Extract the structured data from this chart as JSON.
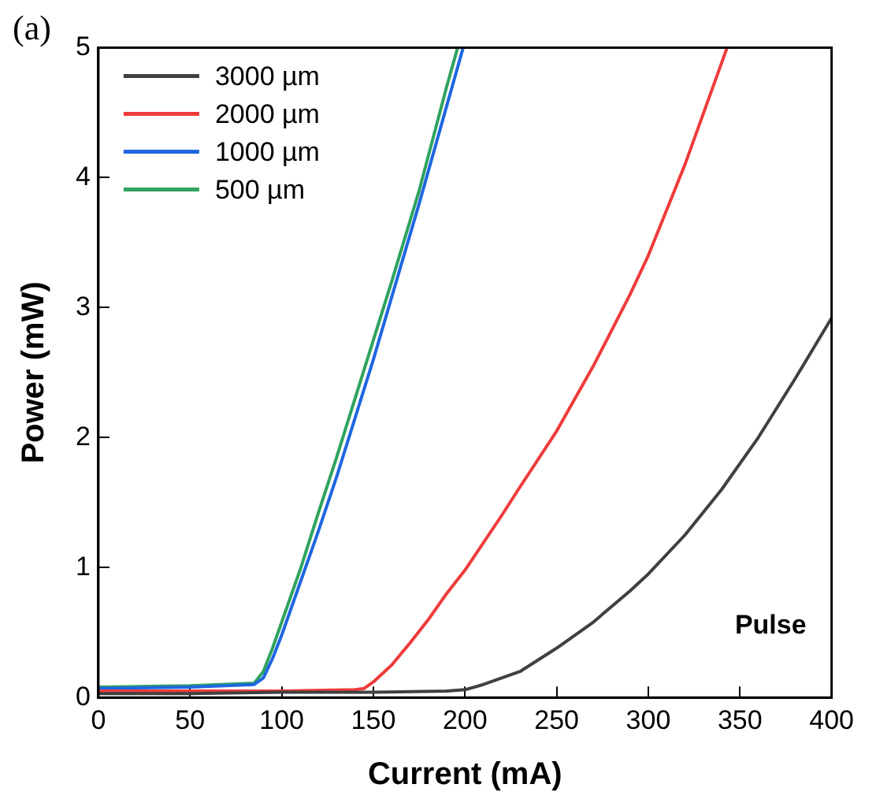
{
  "chart_data": {
    "type": "line",
    "xlabel": "Current (mA)",
    "ylabel": "Power (mW)",
    "xlim": [
      0,
      400
    ],
    "xticks": [
      0,
      50,
      100,
      150,
      200,
      250,
      300,
      350,
      400
    ],
    "ylim": [
      0,
      5
    ],
    "yticks": [
      0,
      1,
      2,
      3,
      4,
      5
    ],
    "grid": false,
    "legend": "top left",
    "marker": "none",
    "line_style": "solid",
    "annotations": [
      "(a)",
      "Pulse"
    ],
    "series": [
      {
        "name": "3000 µm",
        "color": "#404040",
        "x": [
          0,
          50,
          100,
          150,
          190,
          200,
          210,
          220,
          230,
          250,
          270,
          290,
          300,
          320,
          340,
          360,
          380,
          400
        ],
        "values": [
          0.03,
          0.03,
          0.04,
          0.04,
          0.05,
          0.06,
          0.1,
          0.15,
          0.2,
          0.38,
          0.58,
          0.82,
          0.95,
          1.25,
          1.6,
          2.0,
          2.45,
          2.92
        ]
      },
      {
        "name": "2000 µm",
        "color": "#ee3b3b",
        "x": [
          0,
          50,
          100,
          140,
          145,
          150,
          160,
          170,
          180,
          190,
          200,
          220,
          230,
          250,
          270,
          290,
          300,
          320,
          343
        ],
        "values": [
          0.05,
          0.05,
          0.05,
          0.06,
          0.07,
          0.12,
          0.25,
          0.42,
          0.6,
          0.8,
          0.98,
          1.4,
          1.62,
          2.05,
          2.55,
          3.1,
          3.4,
          4.1,
          5
        ]
      },
      {
        "name": "1000 µm",
        "color": "#1f66e0",
        "x": [
          0,
          50,
          85,
          90,
          95,
          100,
          110,
          120,
          130,
          140,
          150,
          160,
          175,
          190,
          199
        ],
        "values": [
          0.07,
          0.08,
          0.1,
          0.15,
          0.3,
          0.48,
          0.88,
          1.28,
          1.7,
          2.15,
          2.6,
          3.08,
          3.8,
          4.55,
          5
        ]
      },
      {
        "name": "500 µm",
        "color": "#2fa35f",
        "x": [
          0,
          50,
          85,
          90,
          95,
          100,
          110,
          120,
          130,
          140,
          150,
          160,
          175,
          190,
          196
        ],
        "values": [
          0.08,
          0.09,
          0.11,
          0.2,
          0.38,
          0.58,
          0.98,
          1.42,
          1.85,
          2.3,
          2.75,
          3.2,
          3.9,
          4.7,
          5
        ]
      }
    ]
  }
}
